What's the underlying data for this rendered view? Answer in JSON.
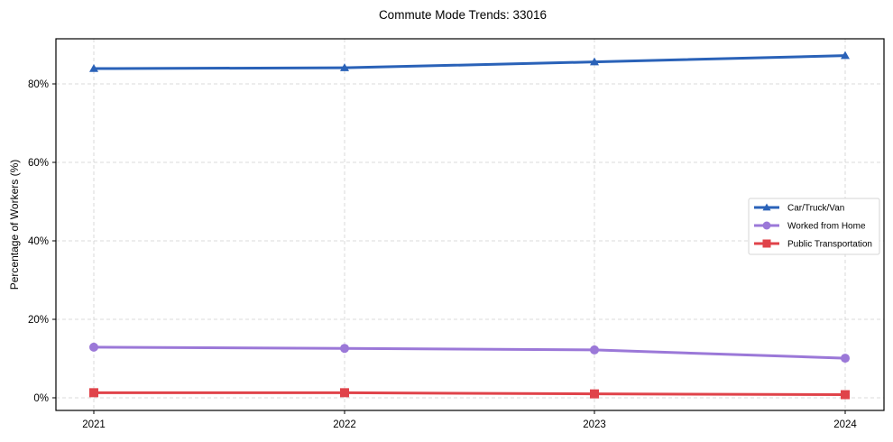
{
  "chart_data": {
    "type": "line",
    "title": "Commute Mode Trends: 33016",
    "xlabel": "",
    "ylabel": "Percentage of Workers (%)",
    "categories": [
      "2021",
      "2022",
      "2023",
      "2024"
    ],
    "y_ticks": [
      0,
      20,
      40,
      60,
      80
    ],
    "y_tick_labels": [
      "0%",
      "20%",
      "40%",
      "60%",
      "80%"
    ],
    "ylim": [
      -3.1,
      92
    ],
    "grid": true,
    "legend_position": "center right",
    "series": [
      {
        "name": "Car/Truck/Van",
        "color": "#2a62b8",
        "marker": "triangle",
        "values": [
          83.9,
          84.1,
          85.6,
          87.2
        ]
      },
      {
        "name": "Worked from Home",
        "color": "#9b78d8",
        "marker": "circle",
        "values": [
          12.9,
          12.6,
          12.2,
          10.1
        ]
      },
      {
        "name": "Public Transportation",
        "color": "#e0434a",
        "marker": "square",
        "values": [
          1.3,
          1.3,
          1.0,
          0.8
        ]
      }
    ]
  }
}
